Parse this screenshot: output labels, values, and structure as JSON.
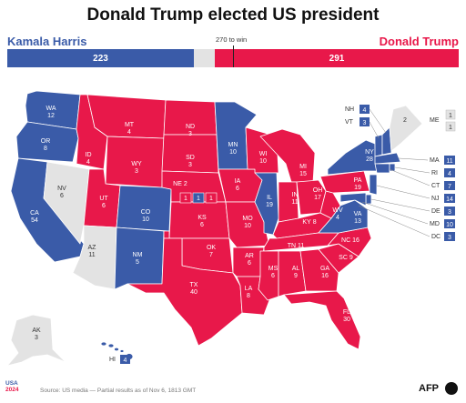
{
  "title": "Donald Trump elected US president",
  "harris": {
    "name": "Kamala Harris",
    "ev": "223",
    "color": "#3a5ba8"
  },
  "trump": {
    "name": "Donald Trump",
    "ev": "291",
    "color": "#e8184a"
  },
  "threshold_label": "270 to win",
  "colors": {
    "harris": "#3a5ba8",
    "trump": "#e8184a",
    "undecided": "#e3e3e3"
  },
  "states": [
    {
      "code": "WA",
      "ev": "12",
      "winner": "harris"
    },
    {
      "code": "OR",
      "ev": "8",
      "winner": "harris"
    },
    {
      "code": "CA",
      "ev": "54",
      "winner": "harris"
    },
    {
      "code": "NV",
      "ev": "6",
      "winner": "undecided"
    },
    {
      "code": "ID",
      "ev": "4",
      "winner": "trump"
    },
    {
      "code": "MT",
      "ev": "4",
      "winner": "trump"
    },
    {
      "code": "WY",
      "ev": "3",
      "winner": "trump"
    },
    {
      "code": "UT",
      "ev": "6",
      "winner": "trump"
    },
    {
      "code": "AZ",
      "ev": "11",
      "winner": "undecided"
    },
    {
      "code": "CO",
      "ev": "10",
      "winner": "harris"
    },
    {
      "code": "NM",
      "ev": "5",
      "winner": "harris"
    },
    {
      "code": "ND",
      "ev": "3",
      "winner": "trump"
    },
    {
      "code": "SD",
      "ev": "3",
      "winner": "trump"
    },
    {
      "code": "NE",
      "ev": "2",
      "winner": "trump"
    },
    {
      "code": "KS",
      "ev": "6",
      "winner": "trump"
    },
    {
      "code": "OK",
      "ev": "7",
      "winner": "trump"
    },
    {
      "code": "TX",
      "ev": "40",
      "winner": "trump"
    },
    {
      "code": "MN",
      "ev": "10",
      "winner": "harris"
    },
    {
      "code": "IA",
      "ev": "6",
      "winner": "trump"
    },
    {
      "code": "MO",
      "ev": "10",
      "winner": "trump"
    },
    {
      "code": "AR",
      "ev": "6",
      "winner": "trump"
    },
    {
      "code": "LA",
      "ev": "8",
      "winner": "trump"
    },
    {
      "code": "WI",
      "ev": "10",
      "winner": "trump"
    },
    {
      "code": "IL",
      "ev": "19",
      "winner": "harris"
    },
    {
      "code": "MI",
      "ev": "15",
      "winner": "trump"
    },
    {
      "code": "IN",
      "ev": "11",
      "winner": "trump"
    },
    {
      "code": "OH",
      "ev": "17",
      "winner": "trump"
    },
    {
      "code": "KY",
      "ev": "8",
      "winner": "trump"
    },
    {
      "code": "TN",
      "ev": "11",
      "winner": "trump"
    },
    {
      "code": "MS",
      "ev": "6",
      "winner": "trump"
    },
    {
      "code": "AL",
      "ev": "9",
      "winner": "trump"
    },
    {
      "code": "GA",
      "ev": "16",
      "winner": "trump"
    },
    {
      "code": "FL",
      "ev": "30",
      "winner": "trump"
    },
    {
      "code": "SC",
      "ev": "9",
      "winner": "trump"
    },
    {
      "code": "NC",
      "ev": "16",
      "winner": "trump"
    },
    {
      "code": "VA",
      "ev": "13",
      "winner": "harris"
    },
    {
      "code": "WV",
      "ev": "4",
      "winner": "trump"
    },
    {
      "code": "PA",
      "ev": "19",
      "winner": "trump"
    },
    {
      "code": "NY",
      "ev": "28",
      "winner": "harris"
    },
    {
      "code": "AK",
      "ev": "3",
      "winner": "undecided"
    },
    {
      "code": "HI",
      "ev": "4",
      "winner": "harris"
    }
  ],
  "nebraska_districts": [
    "1",
    "1",
    "1"
  ],
  "maine": {
    "label": "ME",
    "statewide": "2",
    "districts": [
      "1",
      "1"
    ]
  },
  "northeast_boxes": [
    {
      "code": "NH",
      "ev": "4",
      "winner": "harris"
    },
    {
      "code": "VT",
      "ev": "3",
      "winner": "harris"
    }
  ],
  "east_boxes": [
    {
      "code": "MA",
      "ev": "11",
      "winner": "harris"
    },
    {
      "code": "RI",
      "ev": "4",
      "winner": "harris"
    },
    {
      "code": "CT",
      "ev": "7",
      "winner": "harris"
    },
    {
      "code": "NJ",
      "ev": "14",
      "winner": "harris"
    },
    {
      "code": "DE",
      "ev": "3",
      "winner": "harris"
    },
    {
      "code": "MD",
      "ev": "10",
      "winner": "harris"
    },
    {
      "code": "DC",
      "ev": "3",
      "winner": "harris"
    }
  ],
  "footer": {
    "logo_top": "USA",
    "logo_year": "2024",
    "source": "Source: US media — Partial results as of Nov 6, 1813 GMT",
    "agency": "AFP"
  }
}
